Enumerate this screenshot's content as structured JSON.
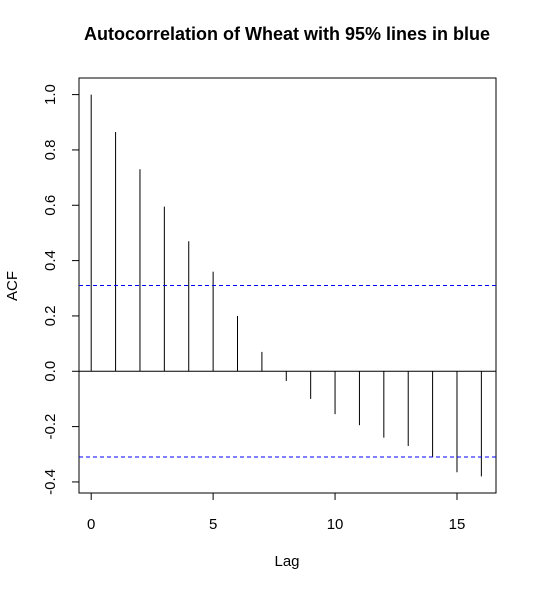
{
  "chart_data": {
    "type": "bar",
    "title": "Autocorrelation of Wheat with 95% lines in blue",
    "xlabel": "Lag",
    "ylabel": "ACF",
    "xlim": [
      -0.5,
      16.6
    ],
    "ylim": [
      -0.44,
      1.06
    ],
    "x": [
      0,
      1,
      2,
      3,
      4,
      5,
      6,
      7,
      8,
      9,
      10,
      11,
      12,
      13,
      14,
      15,
      16
    ],
    "values": [
      1.0,
      0.865,
      0.73,
      0.595,
      0.47,
      0.36,
      0.2,
      0.07,
      -0.035,
      -0.1,
      -0.155,
      -0.195,
      -0.24,
      -0.27,
      -0.31,
      -0.365,
      -0.38
    ],
    "confidence_bounds": [
      0.31,
      -0.31
    ],
    "x_ticks": [
      0,
      5,
      10,
      15
    ],
    "y_ticks": [
      -0.4,
      -0.2,
      0.0,
      0.2,
      0.4,
      0.6,
      0.8,
      1.0
    ],
    "x_tick_labels": [
      "0",
      "5",
      "10",
      "15"
    ],
    "y_tick_labels": [
      "-0.4",
      "-0.2",
      "0.0",
      "0.2",
      "0.4",
      "0.6",
      "0.8",
      "1.0"
    ],
    "grid": false,
    "colors": {
      "bars": "#000000",
      "confidence_lines": "#0000ff",
      "zero_line": "#000000"
    }
  }
}
